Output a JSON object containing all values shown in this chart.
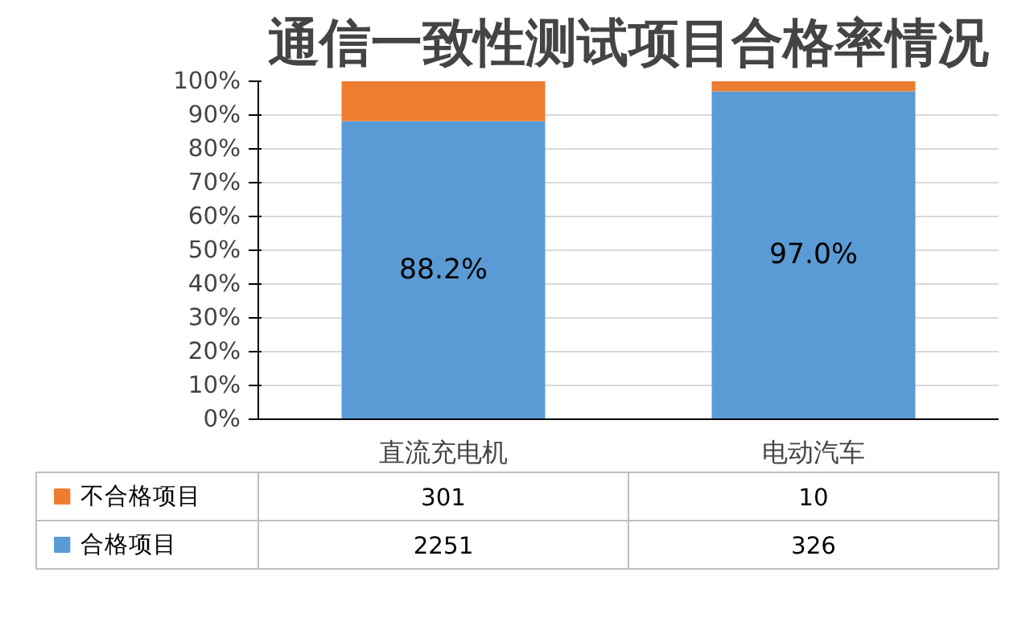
{
  "chart_data": {
    "type": "bar",
    "title": "通信一致性测试项目合格率情况",
    "stacked": true,
    "categories": [
      "直流充电机",
      "电动汽车"
    ],
    "series": [
      {
        "name": "合格项目",
        "color": "#5b9bd5",
        "values": [
          88.2,
          97.0
        ],
        "value_labels": [
          "88.2%",
          "97.0%"
        ]
      },
      {
        "name": "不合格项目",
        "color": "#ed7d31",
        "values": [
          11.8,
          3.0
        ]
      }
    ],
    "ylim": [
      0,
      100
    ],
    "yticks": [
      {
        "value": 0,
        "label": "0%"
      },
      {
        "value": 10,
        "label": "10%"
      },
      {
        "value": 20,
        "label": "20%"
      },
      {
        "value": 30,
        "label": "30%"
      },
      {
        "value": 40,
        "label": "40%"
      },
      {
        "value": 50,
        "label": "50%"
      },
      {
        "value": 60,
        "label": "60%"
      },
      {
        "value": 70,
        "label": "70%"
      },
      {
        "value": 80,
        "label": "80%"
      },
      {
        "value": 90,
        "label": "90%"
      },
      {
        "value": 100,
        "label": "100%"
      }
    ],
    "grid": "y",
    "legend": "bottom left",
    "annotations": [
      "301",
      "10",
      "2251",
      "326"
    ]
  }
}
